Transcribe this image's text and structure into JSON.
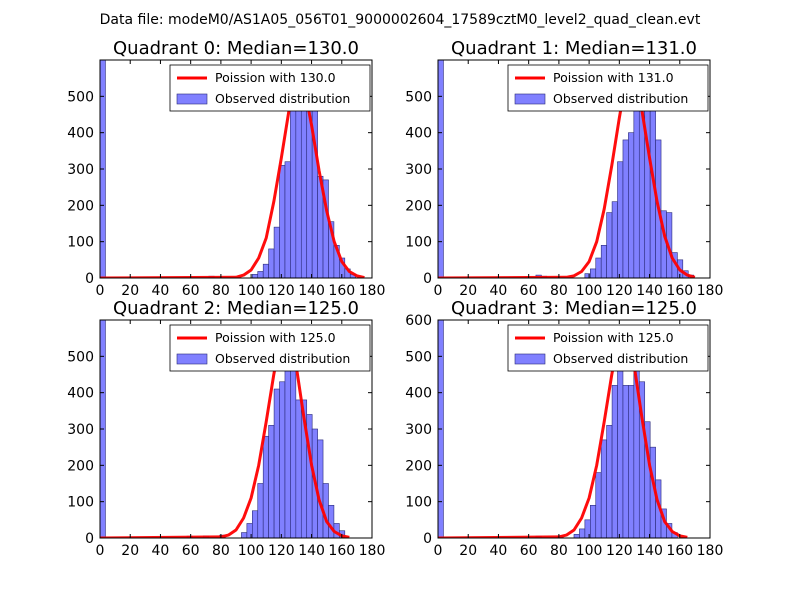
{
  "figure": {
    "suptitle": "Data file: modeM0/AS1A05_056T01_9000002604_17589cztM0_level2_quad_clean.evt"
  },
  "colors": {
    "bar_fill": "#8080ff",
    "bar_edge": "#2a2a7a",
    "poisson_line": "#ff0000",
    "axis": "#000000"
  },
  "chart_data": [
    {
      "type": "bar",
      "title": "Quadrant 0: Median=130.0",
      "median": 130.0,
      "xlim": [
        0,
        180
      ],
      "ylim": [
        0,
        600
      ],
      "xticks": [
        0,
        20,
        40,
        60,
        80,
        100,
        120,
        140,
        160,
        180
      ],
      "yticks": [
        0,
        100,
        200,
        300,
        400,
        500
      ],
      "bin_width": 3.6,
      "histogram": {
        "bin_starts": [
          0,
          72,
          100.8,
          104.4,
          108,
          111.6,
          115.2,
          118.8,
          122.4,
          126,
          129.6,
          133.2,
          136.8,
          140.4,
          144,
          147.6,
          151.2,
          154.8,
          158.4,
          162,
          165.6
        ],
        "counts": [
          600,
          5,
          10,
          18,
          38,
          80,
          140,
          310,
          320,
          520,
          555,
          575,
          470,
          550,
          280,
          270,
          155,
          90,
          55,
          25,
          10
        ]
      },
      "poisson_curve": {
        "x": [
          0,
          90,
          95,
          100,
          105,
          110,
          115,
          120,
          125,
          130,
          135,
          140,
          145,
          150,
          155,
          160,
          165,
          170,
          175
        ],
        "y": [
          0,
          2,
          8,
          22,
          55,
          110,
          210,
          330,
          460,
          575,
          530,
          420,
          295,
          185,
          100,
          45,
          18,
          6,
          1
        ]
      },
      "legend": {
        "poisson": "Poission with 130.0",
        "observed": "Observed distribution",
        "placement": "upper right"
      }
    },
    {
      "type": "bar",
      "title": "Quadrant 1: Median=131.0",
      "median": 131.0,
      "xlim": [
        0,
        180
      ],
      "ylim": [
        0,
        600
      ],
      "xticks": [
        0,
        20,
        40,
        60,
        80,
        100,
        120,
        140,
        160,
        180
      ],
      "yticks": [
        0,
        100,
        200,
        300,
        400,
        500
      ],
      "bin_width": 3.6,
      "histogram": {
        "bin_starts": [
          0,
          64.8,
          68.4,
          97.2,
          100.8,
          104.4,
          108,
          111.6,
          115.2,
          118.8,
          122.4,
          126,
          129.6,
          133.2,
          136.8,
          140.4,
          144,
          147.6,
          151.2,
          154.8,
          158.4,
          162,
          165.6
        ],
        "counts": [
          600,
          8,
          5,
          12,
          25,
          55,
          90,
          180,
          210,
          320,
          380,
          400,
          525,
          555,
          470,
          480,
          380,
          185,
          180,
          70,
          50,
          20,
          8
        ]
      },
      "poisson_curve": {
        "x": [
          0,
          85,
          90,
          95,
          100,
          105,
          110,
          115,
          120,
          125,
          130,
          135,
          140,
          145,
          150,
          155,
          160,
          165,
          170
        ],
        "y": [
          0,
          2,
          6,
          18,
          45,
          100,
          190,
          310,
          440,
          560,
          570,
          460,
          330,
          210,
          115,
          55,
          22,
          8,
          2
        ]
      },
      "legend": {
        "poisson": "Poission with 131.0",
        "observed": "Observed distribution",
        "placement": "upper right"
      }
    },
    {
      "type": "bar",
      "title": "Quadrant 2: Median=125.0",
      "median": 125.0,
      "xlim": [
        0,
        180
      ],
      "ylim": [
        0,
        600
      ],
      "xticks": [
        0,
        20,
        40,
        60,
        80,
        100,
        120,
        140,
        160,
        180
      ],
      "yticks": [
        0,
        100,
        200,
        300,
        400,
        500
      ],
      "bin_width": 3.6,
      "histogram": {
        "bin_starts": [
          0,
          57.6,
          68.4,
          79.2,
          93.6,
          97.2,
          100.8,
          104.4,
          108,
          111.6,
          115.2,
          118.8,
          122.4,
          126,
          129.6,
          133.2,
          136.8,
          140.4,
          144,
          147.6,
          151.2,
          154.8,
          158.4
        ],
        "counts": [
          600,
          5,
          6,
          8,
          15,
          40,
          75,
          150,
          280,
          310,
          410,
          430,
          520,
          490,
          380,
          380,
          340,
          300,
          270,
          150,
          90,
          40,
          20
        ]
      },
      "poisson_curve": {
        "x": [
          0,
          80,
          85,
          90,
          95,
          100,
          105,
          110,
          115,
          120,
          125,
          130,
          135,
          140,
          145,
          150,
          155,
          160,
          165
        ],
        "y": [
          0,
          3,
          8,
          22,
          55,
          110,
          200,
          320,
          450,
          560,
          575,
          470,
          330,
          200,
          105,
          45,
          18,
          6,
          2
        ]
      },
      "legend": {
        "poisson": "Poission with 125.0",
        "observed": "Observed distribution",
        "placement": "upper right"
      }
    },
    {
      "type": "bar",
      "title": "Quadrant 3: Median=125.0",
      "median": 125.0,
      "xlim": [
        0,
        180
      ],
      "ylim": [
        0,
        600
      ],
      "xticks": [
        0,
        20,
        40,
        60,
        80,
        100,
        120,
        140,
        160,
        180
      ],
      "yticks": [
        0,
        100,
        200,
        300,
        400,
        500,
        600
      ],
      "bin_width": 3.6,
      "histogram": {
        "bin_starts": [
          0,
          64.8,
          79.2,
          90,
          93.6,
          97.2,
          100.8,
          104.4,
          108,
          111.6,
          115.2,
          118.8,
          122.4,
          126,
          129.6,
          133.2,
          136.8,
          140.4,
          144,
          147.6,
          151.2,
          154.8
        ],
        "counts": [
          600,
          5,
          6,
          10,
          25,
          50,
          90,
          180,
          270,
          310,
          420,
          470,
          420,
          420,
          520,
          430,
          320,
          250,
          160,
          80,
          40,
          15
        ]
      },
      "poisson_curve": {
        "x": [
          0,
          80,
          85,
          90,
          95,
          100,
          105,
          110,
          115,
          120,
          125,
          130,
          135,
          140,
          145,
          150,
          155,
          160,
          165
        ],
        "y": [
          0,
          3,
          8,
          22,
          55,
          110,
          200,
          320,
          450,
          560,
          575,
          470,
          330,
          200,
          105,
          45,
          18,
          6,
          2
        ]
      },
      "legend": {
        "poisson": "Poission with 125.0",
        "observed": "Observed distribution",
        "placement": "upper right"
      }
    }
  ]
}
